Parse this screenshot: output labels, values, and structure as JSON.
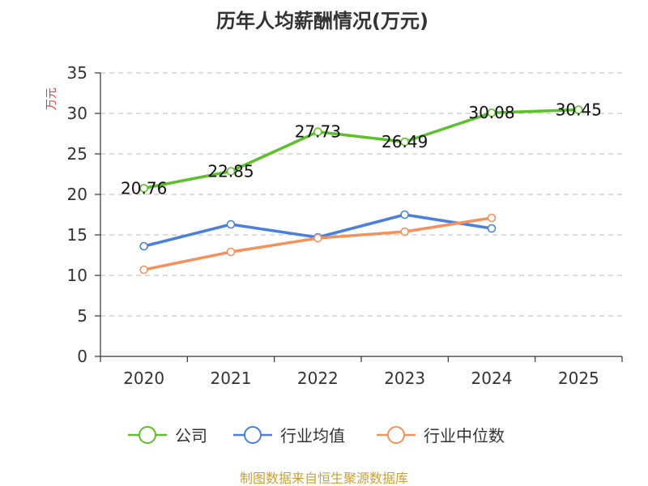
{
  "chart_data": {
    "type": "line",
    "title": "历年人均薪酬情况(万元)",
    "ylabel": "万元",
    "xlabel": "",
    "categories": [
      "2020",
      "2021",
      "2022",
      "2023",
      "2024",
      "2025"
    ],
    "ylim": [
      0,
      35
    ],
    "yticks": [
      0,
      5,
      10,
      15,
      20,
      25,
      30,
      35
    ],
    "grid": true,
    "legend_position": "bottom",
    "series": [
      {
        "name": "公司",
        "color": "#5cc128",
        "values": [
          20.76,
          22.85,
          27.73,
          26.49,
          30.08,
          30.45
        ],
        "labels": [
          "20.76",
          "22.85",
          "27.73",
          "26.49",
          "30.08",
          "30.45"
        ]
      },
      {
        "name": "行业均值",
        "color": "#4a7fdc",
        "values": [
          13.6,
          16.3,
          14.7,
          17.5,
          15.8,
          null
        ]
      },
      {
        "name": "行业中位数",
        "color": "#f4915b",
        "values": [
          10.7,
          12.9,
          14.6,
          15.4,
          17.1,
          null
        ]
      }
    ]
  },
  "source": "制图数据来自恒生聚源数据库"
}
